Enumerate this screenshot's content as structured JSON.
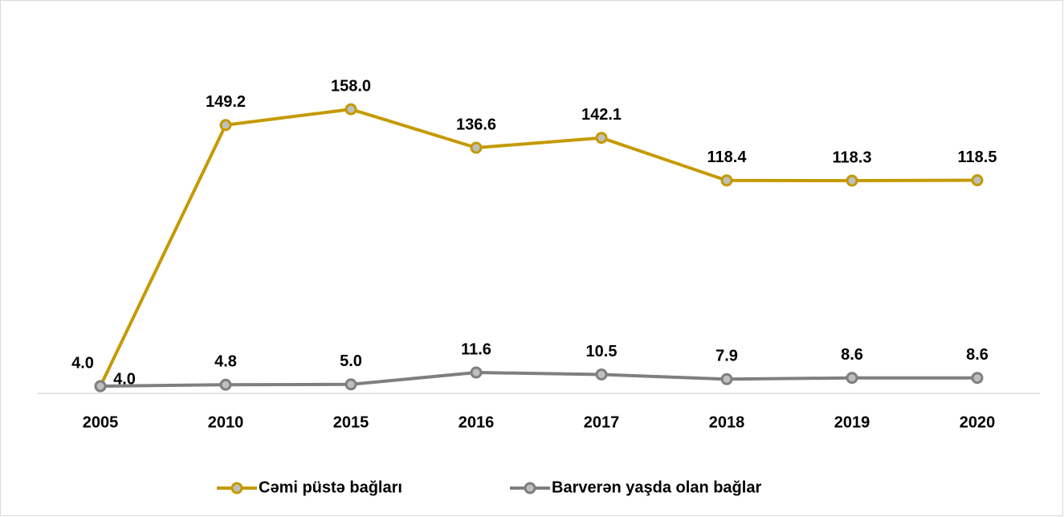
{
  "chart_data": {
    "type": "line",
    "categories": [
      "2005",
      "2010",
      "2015",
      "2016",
      "2017",
      "2018",
      "2019",
      "2020"
    ],
    "series": [
      {
        "name": "Cəmi püstə bağları",
        "color": "#c49a00",
        "values": [
          4.0,
          149.2,
          158.0,
          136.6,
          142.1,
          118.4,
          118.3,
          118.5
        ],
        "value_labels": [
          "4.0",
          "149.2",
          "158.0",
          "136.6",
          "142.1",
          "118.4",
          "118.3",
          "118.5"
        ]
      },
      {
        "name": "Barverən yaşda olan bağlar",
        "color": "#7f7f7f",
        "values": [
          4.0,
          4.8,
          5.0,
          11.6,
          10.5,
          7.9,
          8.6,
          8.6
        ],
        "value_labels": [
          "4.0",
          "4.8",
          "5.0",
          "11.6",
          "10.5",
          "7.9",
          "8.6",
          "8.6"
        ]
      }
    ],
    "ylim": [
      0,
      200
    ],
    "legend": "bottom"
  }
}
